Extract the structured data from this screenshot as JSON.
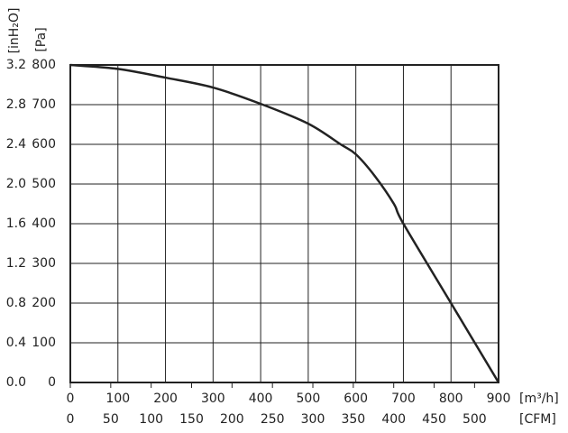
{
  "chart_data": {
    "type": "line",
    "x_label": "[m³/h]",
    "x2_label": "[CFM]",
    "y_label": "[Pa]",
    "y2_label": "[inH₂O]",
    "x": [
      0,
      100,
      200,
      300,
      400,
      500,
      568,
      600,
      640,
      680,
      700,
      800,
      900
    ],
    "series": [
      {
        "name": "Pa",
        "color": "#222222",
        "values": [
          800,
          790,
          768,
          743,
          702,
          652,
          600,
          575,
          520,
          450,
          400,
          200,
          0
        ]
      }
    ],
    "xlim": [
      0,
      900
    ],
    "xticks": [
      0,
      100,
      200,
      300,
      400,
      500,
      600,
      700,
      800,
      900
    ],
    "x2lim": [
      0,
      529.7
    ],
    "x2ticks": [
      0,
      50,
      100,
      150,
      200,
      250,
      300,
      350,
      400,
      450,
      500
    ],
    "ylim": [
      0,
      800
    ],
    "yticks": [
      0,
      100,
      200,
      300,
      400,
      500,
      600,
      700,
      800
    ],
    "y2lim": [
      0,
      3.2
    ],
    "y2ticks": [
      {
        "value": 0,
        "label": "0.0"
      },
      0.4,
      0.8,
      1.2,
      1.6,
      {
        "value": 2,
        "label": "2.0"
      },
      2.4,
      2.8,
      3.2
    ],
    "grid": true
  }
}
